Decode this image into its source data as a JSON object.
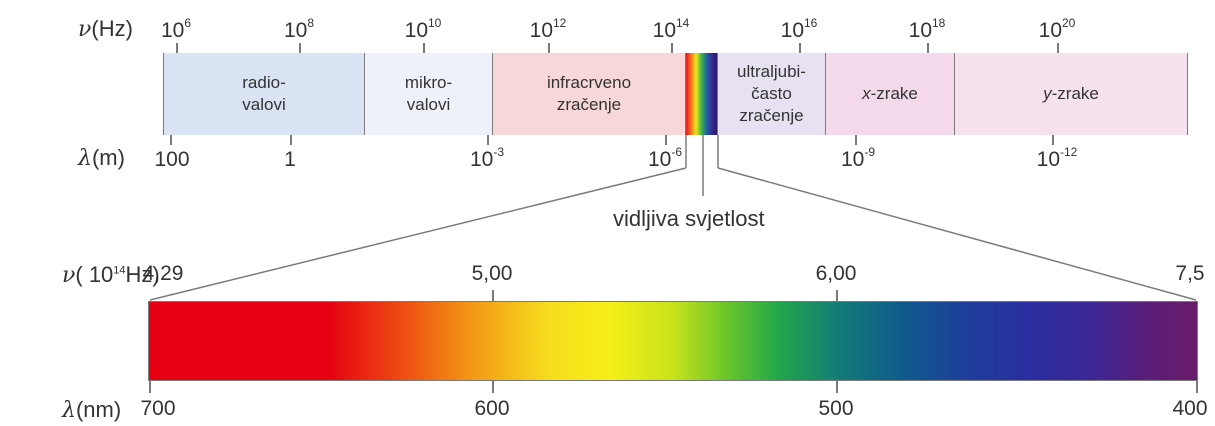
{
  "top_scale": {
    "freq_axis_label": "(Hz)",
    "freq_symbol": "ν",
    "freq_ticks": [
      {
        "base": "10",
        "exp": "6"
      },
      {
        "base": "10",
        "exp": "8"
      },
      {
        "base": "10",
        "exp": "10"
      },
      {
        "base": "10",
        "exp": "12"
      },
      {
        "base": "10",
        "exp": "14"
      },
      {
        "base": "10",
        "exp": "16"
      },
      {
        "base": "10",
        "exp": "18"
      },
      {
        "base": "10",
        "exp": "20"
      }
    ],
    "wave_symbol": "λ",
    "wave_axis_label": "(m)",
    "wave_ticks": [
      {
        "base": "100",
        "exp": ""
      },
      {
        "base": "1",
        "exp": ""
      },
      {
        "base": "10",
        "exp": "-3"
      },
      {
        "base": "10",
        "exp": "-6"
      },
      {
        "base": "10",
        "exp": "-9"
      },
      {
        "base": "10",
        "exp": "-12"
      }
    ]
  },
  "bands": [
    {
      "label": "radio-\nvalovi",
      "color": "#d9e3f3"
    },
    {
      "label": "mikro-\nvalovi",
      "color": "#eef1f8"
    },
    {
      "label": "infracrveno\nzračenje",
      "color": "#f7d7d7"
    },
    {
      "label": "ultraljubi-\nčasto\nzračenje",
      "color": "#e7e1f1"
    },
    {
      "label_italic": "x",
      "label": "-zrake",
      "color": "#f4d9ea"
    },
    {
      "label_italic": "y",
      "label": "-zrake",
      "color": "#f6e2ee"
    }
  ],
  "visible_caption": "vidljiva svjetlost",
  "bottom_scale": {
    "freq_symbol": "ν",
    "freq_axis_label": "( 10",
    "freq_axis_exp": "14",
    "freq_axis_unit": "Hz)",
    "freq_ticks": [
      "4,29",
      "5,00",
      "6,00",
      "7,5"
    ],
    "wave_symbol": "λ",
    "wave_axis_label": "(nm)",
    "wave_ticks": [
      "700",
      "600",
      "500",
      "400"
    ]
  },
  "colors": {
    "line": "#7a7a7a",
    "text": "#333333"
  }
}
